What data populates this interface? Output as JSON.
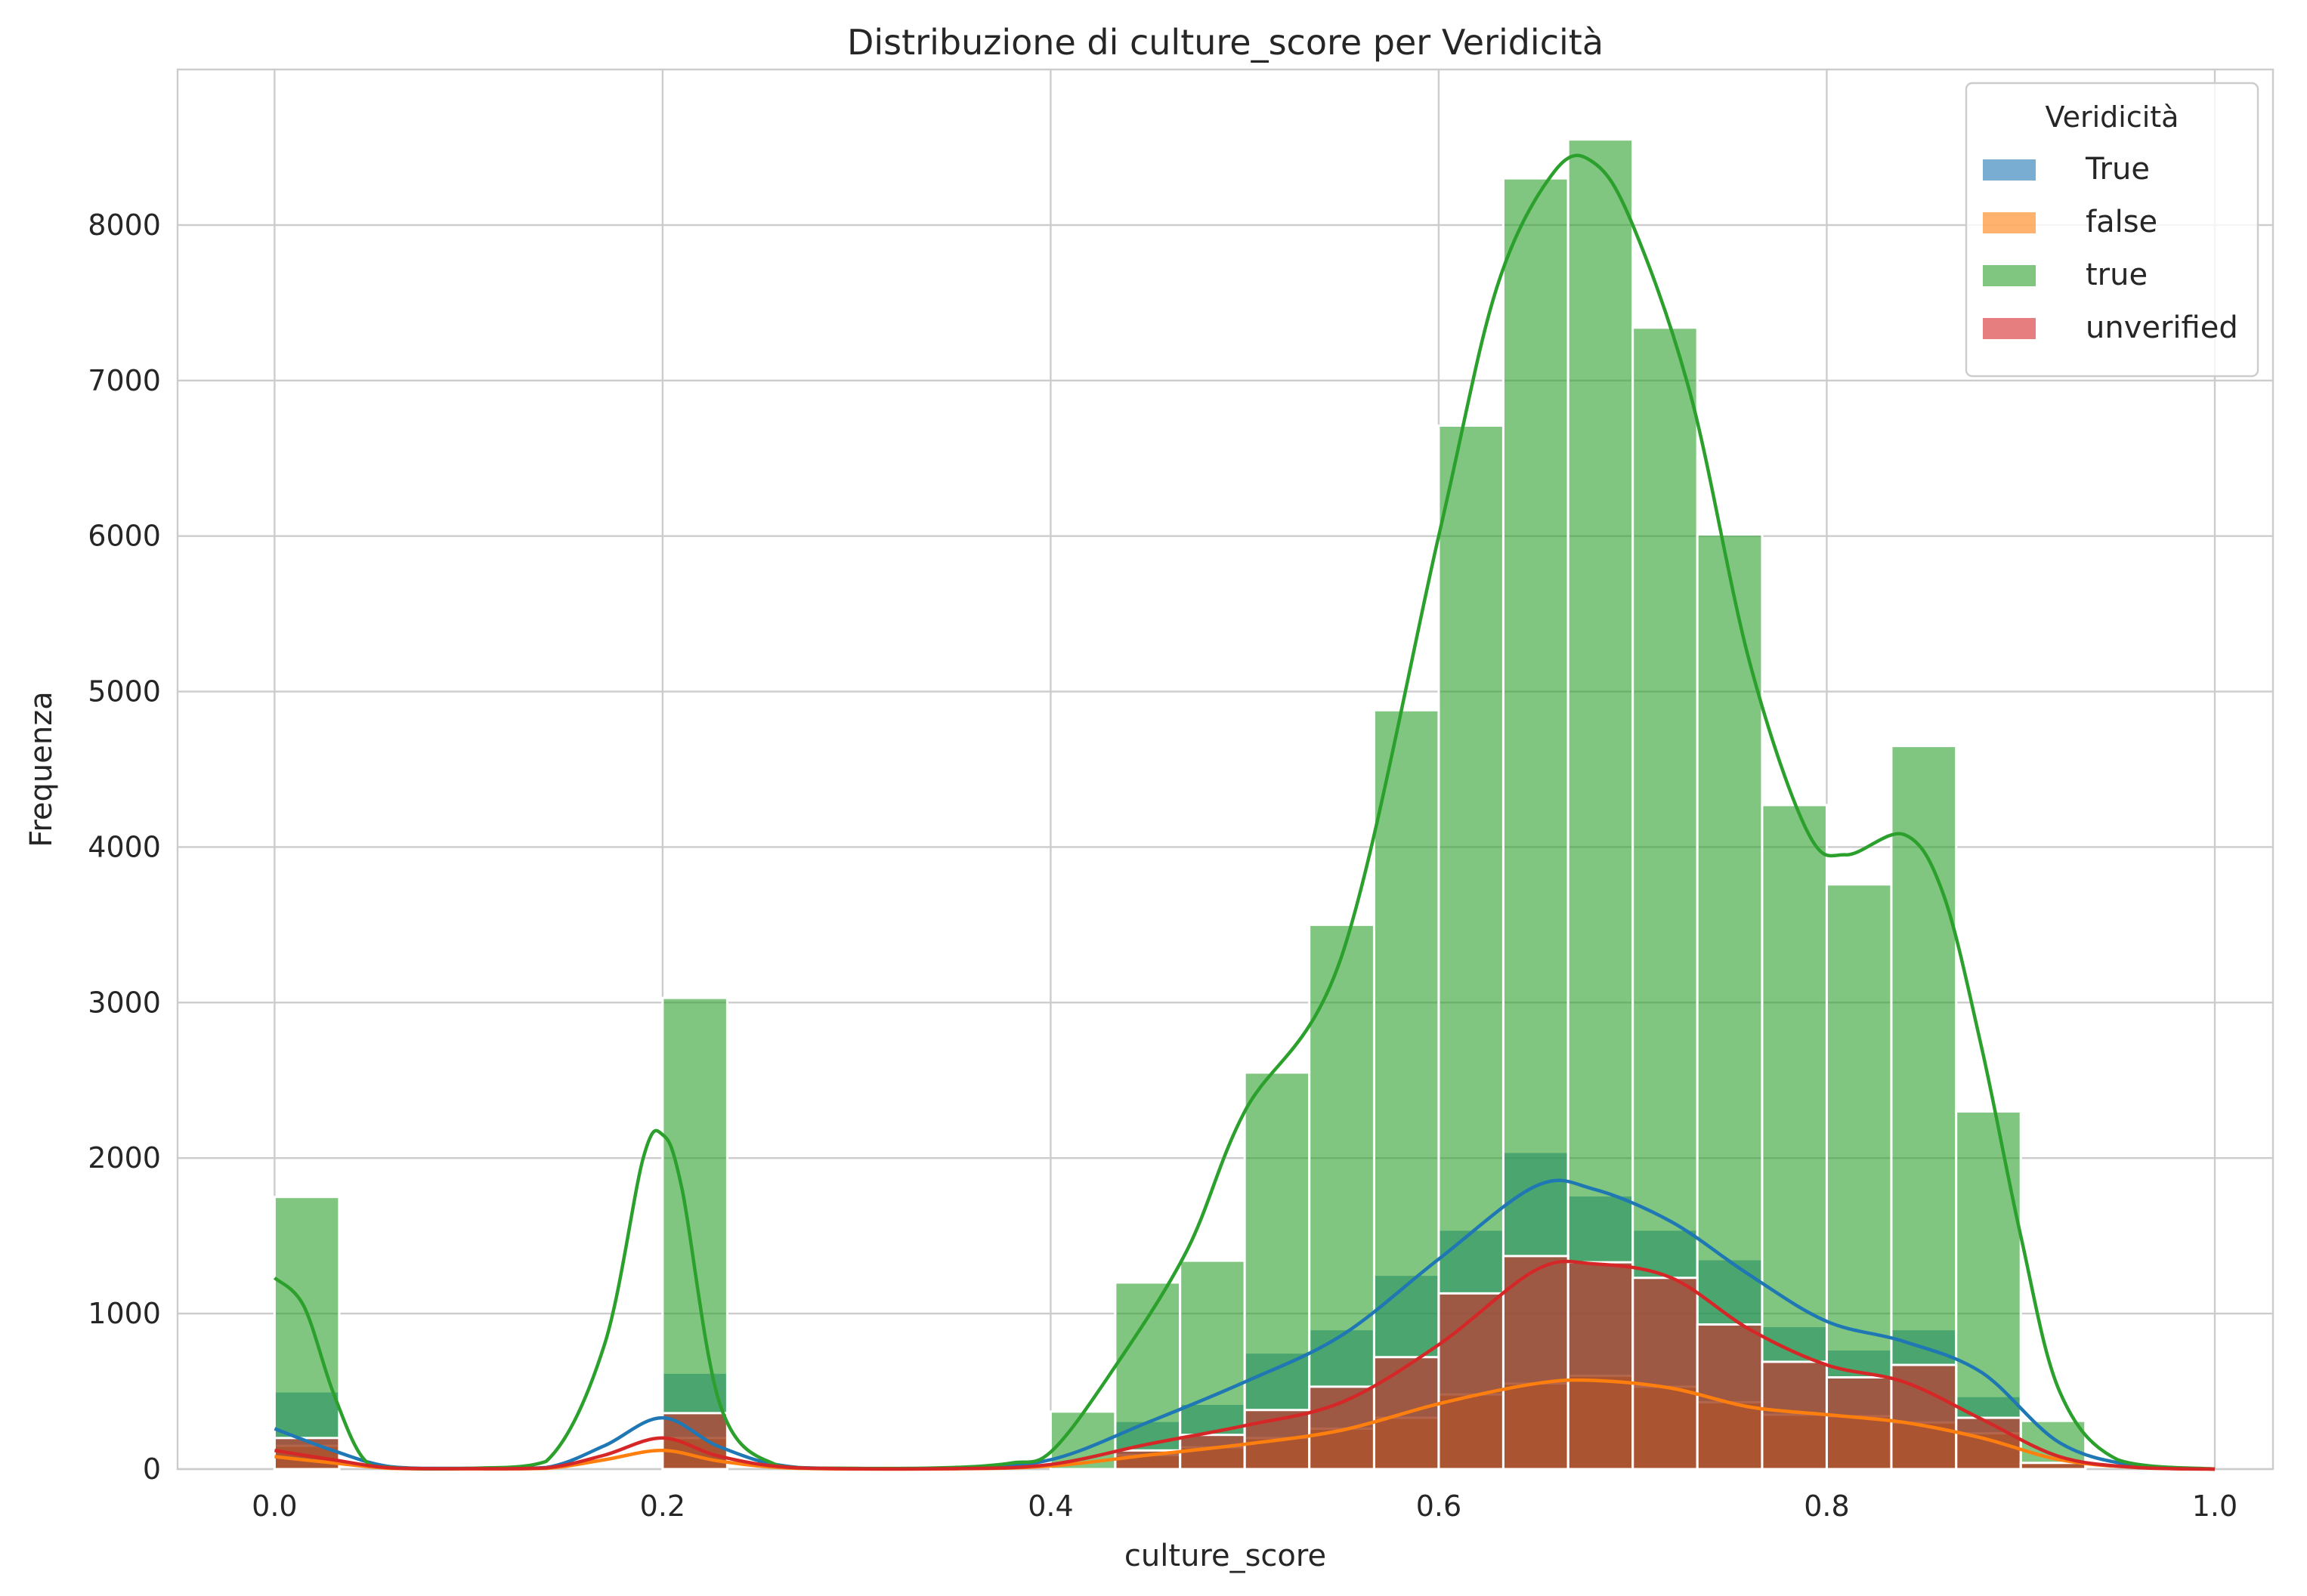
{
  "chart_data": {
    "type": "bar",
    "title": "Distribuzione di culture_score per Veridicità",
    "xlabel": "culture_score",
    "ylabel": "Frequenza",
    "xlim": [
      -0.05,
      1.03
    ],
    "ylim": [
      0,
      9000
    ],
    "xticks": [
      0.0,
      0.2,
      0.4,
      0.6,
      0.8,
      1.0
    ],
    "xtick_labels": [
      "0.0",
      "0.2",
      "0.4",
      "0.6",
      "0.8",
      "1.0"
    ],
    "yticks": [
      0,
      1000,
      2000,
      3000,
      4000,
      5000,
      6000,
      7000,
      8000
    ],
    "ytick_labels": [
      "0",
      "1000",
      "2000",
      "3000",
      "4000",
      "5000",
      "6000",
      "7000",
      "8000"
    ],
    "grid": true,
    "legend": {
      "title": "Veridicità",
      "position": "top-right"
    },
    "bin_edges": [
      0.0,
      0.0333,
      0.0667,
      0.1,
      0.1333,
      0.1667,
      0.2,
      0.2333,
      0.2667,
      0.3,
      0.3333,
      0.3667,
      0.4,
      0.4333,
      0.4667,
      0.5,
      0.5333,
      0.5667,
      0.6,
      0.6333,
      0.6667,
      0.7,
      0.7333,
      0.7667,
      0.8,
      0.8333,
      0.8667,
      0.9,
      0.9333,
      0.9667,
      1.0
    ],
    "series": [
      {
        "name": "True",
        "color": "#1f77b4",
        "values": [
          500,
          0,
          0,
          0,
          0,
          0,
          620,
          0,
          0,
          0,
          0,
          0,
          0,
          310,
          420,
          750,
          900,
          1250,
          1540,
          2040,
          1760,
          1540,
          1350,
          920,
          770,
          900,
          470,
          50,
          0,
          0
        ],
        "kde_x": [
          0.0,
          0.03,
          0.06,
          0.1,
          0.14,
          0.17,
          0.2,
          0.23,
          0.27,
          0.35,
          0.4,
          0.45,
          0.5,
          0.55,
          0.6,
          0.65,
          0.68,
          0.72,
          0.76,
          0.8,
          0.84,
          0.88,
          0.92,
          0.96,
          1.0
        ],
        "kde_y": [
          260,
          120,
          15,
          5,
          10,
          150,
          330,
          140,
          10,
          5,
          60,
          300,
          560,
          860,
          1350,
          1820,
          1800,
          1590,
          1250,
          950,
          820,
          620,
          170,
          20,
          0
        ]
      },
      {
        "name": "false",
        "color": "#ff7f0e",
        "values": [
          150,
          0,
          0,
          0,
          0,
          0,
          200,
          0,
          0,
          0,
          0,
          0,
          0,
          90,
          140,
          200,
          260,
          330,
          480,
          550,
          600,
          530,
          430,
          350,
          340,
          300,
          230,
          40,
          0,
          0
        ],
        "kde_x": [
          0.0,
          0.03,
          0.06,
          0.1,
          0.14,
          0.17,
          0.2,
          0.23,
          0.27,
          0.35,
          0.4,
          0.45,
          0.5,
          0.55,
          0.6,
          0.65,
          0.68,
          0.72,
          0.76,
          0.8,
          0.84,
          0.88,
          0.92,
          0.96,
          1.0
        ],
        "kde_y": [
          80,
          40,
          5,
          2,
          5,
          60,
          120,
          50,
          5,
          2,
          20,
          90,
          160,
          250,
          420,
          550,
          570,
          520,
          400,
          350,
          300,
          200,
          60,
          10,
          0
        ]
      },
      {
        "name": "true",
        "color": "#2ca02c",
        "values": [
          1750,
          0,
          0,
          0,
          0,
          0,
          3030,
          0,
          0,
          0,
          0,
          0,
          370,
          1200,
          1340,
          2550,
          3500,
          4880,
          6710,
          8300,
          8550,
          7340,
          6010,
          4270,
          3760,
          4650,
          2300,
          310,
          0,
          0
        ],
        "kde_x": [
          0.0,
          0.015,
          0.03,
          0.045,
          0.06,
          0.1,
          0.14,
          0.17,
          0.19,
          0.2,
          0.21,
          0.23,
          0.26,
          0.3,
          0.35,
          0.38,
          0.4,
          0.43,
          0.47,
          0.5,
          0.55,
          0.6,
          0.63,
          0.66,
          0.68,
          0.7,
          0.73,
          0.76,
          0.79,
          0.81,
          0.84,
          0.86,
          0.88,
          0.9,
          0.92,
          0.95,
          1.0
        ],
        "kde_y": [
          1230,
          1050,
          500,
          80,
          10,
          5,
          50,
          800,
          2000,
          2150,
          1800,
          400,
          20,
          5,
          10,
          40,
          110,
          600,
          1400,
          2300,
          3300,
          6000,
          7600,
          8350,
          8400,
          8000,
          6900,
          5200,
          4100,
          3950,
          4080,
          3700,
          2700,
          1500,
          500,
          60,
          0
        ]
      },
      {
        "name": "unverified",
        "color": "#d62728",
        "values": [
          200,
          0,
          0,
          0,
          0,
          0,
          360,
          0,
          0,
          0,
          0,
          0,
          0,
          120,
          220,
          380,
          530,
          720,
          1130,
          1370,
          1330,
          1230,
          930,
          690,
          590,
          670,
          330,
          40,
          0,
          0
        ],
        "kde_x": [
          0.0,
          0.03,
          0.06,
          0.1,
          0.14,
          0.17,
          0.2,
          0.23,
          0.27,
          0.35,
          0.4,
          0.45,
          0.5,
          0.55,
          0.6,
          0.65,
          0.68,
          0.72,
          0.76,
          0.8,
          0.84,
          0.88,
          0.92,
          0.96,
          1.0
        ],
        "kde_y": [
          120,
          60,
          8,
          3,
          8,
          90,
          200,
          80,
          8,
          3,
          30,
          160,
          280,
          430,
          800,
          1280,
          1320,
          1230,
          900,
          670,
          560,
          320,
          80,
          10,
          0
        ]
      }
    ]
  }
}
